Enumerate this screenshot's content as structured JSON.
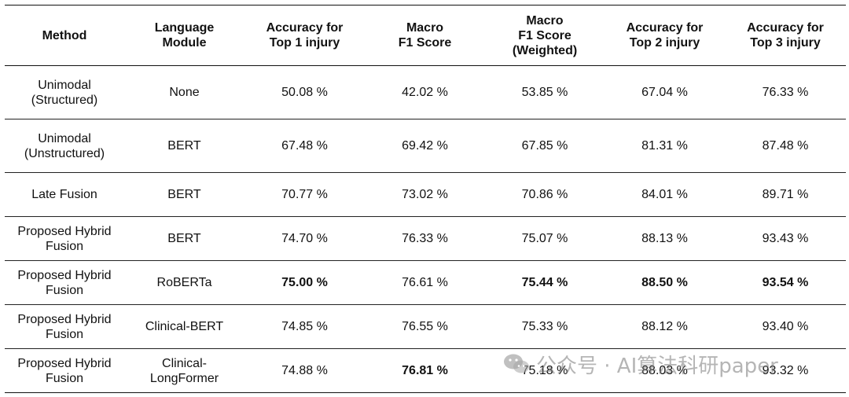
{
  "table": {
    "headers": [
      "Method",
      "Language\nModule",
      "Accuracy for\nTop 1 injury",
      "Macro\nF1 Score",
      "Macro\nF1 Score\n(Weighted)",
      "Accuracy for\nTop 2 injury",
      "Accuracy for\nTop 3 injury"
    ],
    "rows": [
      {
        "method": "Unimodal\n(Structured)",
        "module": "None",
        "top1": "50.08 %",
        "macro_f1": "42.02 %",
        "macro_f1_weighted": "53.85 %",
        "top2": "67.04 %",
        "top3": "76.33 %"
      },
      {
        "method": "Unimodal\n(Unstructured)",
        "module": "BERT",
        "top1": "67.48 %",
        "macro_f1": "69.42 %",
        "macro_f1_weighted": "67.85 %",
        "top2": "81.31 %",
        "top3": "87.48 %"
      },
      {
        "method": "Late Fusion",
        "module": "BERT",
        "top1": "70.77 %",
        "macro_f1": "73.02 %",
        "macro_f1_weighted": "70.86 %",
        "top2": "84.01 %",
        "top3": "89.71 %"
      },
      {
        "method": "Proposed Hybrid\nFusion",
        "module": "BERT",
        "top1": "74.70 %",
        "macro_f1": "76.33 %",
        "macro_f1_weighted": "75.07 %",
        "top2": "88.13 %",
        "top3": "93.43 %"
      },
      {
        "method": "Proposed Hybrid\nFusion",
        "module": "RoBERTa",
        "top1": "75.00 %",
        "macro_f1": "76.61 %",
        "macro_f1_weighted": "75.44 %",
        "top2": "88.50 %",
        "top3": "93.54 %"
      },
      {
        "method": "Proposed Hybrid\nFusion",
        "module": "Clinical-BERT",
        "top1": "74.85 %",
        "macro_f1": "76.55 %",
        "macro_f1_weighted": "75.33 %",
        "top2": "88.12 %",
        "top3": "93.40 %"
      },
      {
        "method": "Proposed Hybrid\nFusion",
        "module": "Clinical-\nLongFormer",
        "top1": "74.88 %",
        "macro_f1": "76.81 %",
        "macro_f1_weighted": "75.18 %",
        "top2": "88.03 %",
        "top3": "93.32 %"
      }
    ]
  },
  "watermark": {
    "text": "公众号 · AI算法科研paper",
    "icon": "wechat-icon"
  }
}
